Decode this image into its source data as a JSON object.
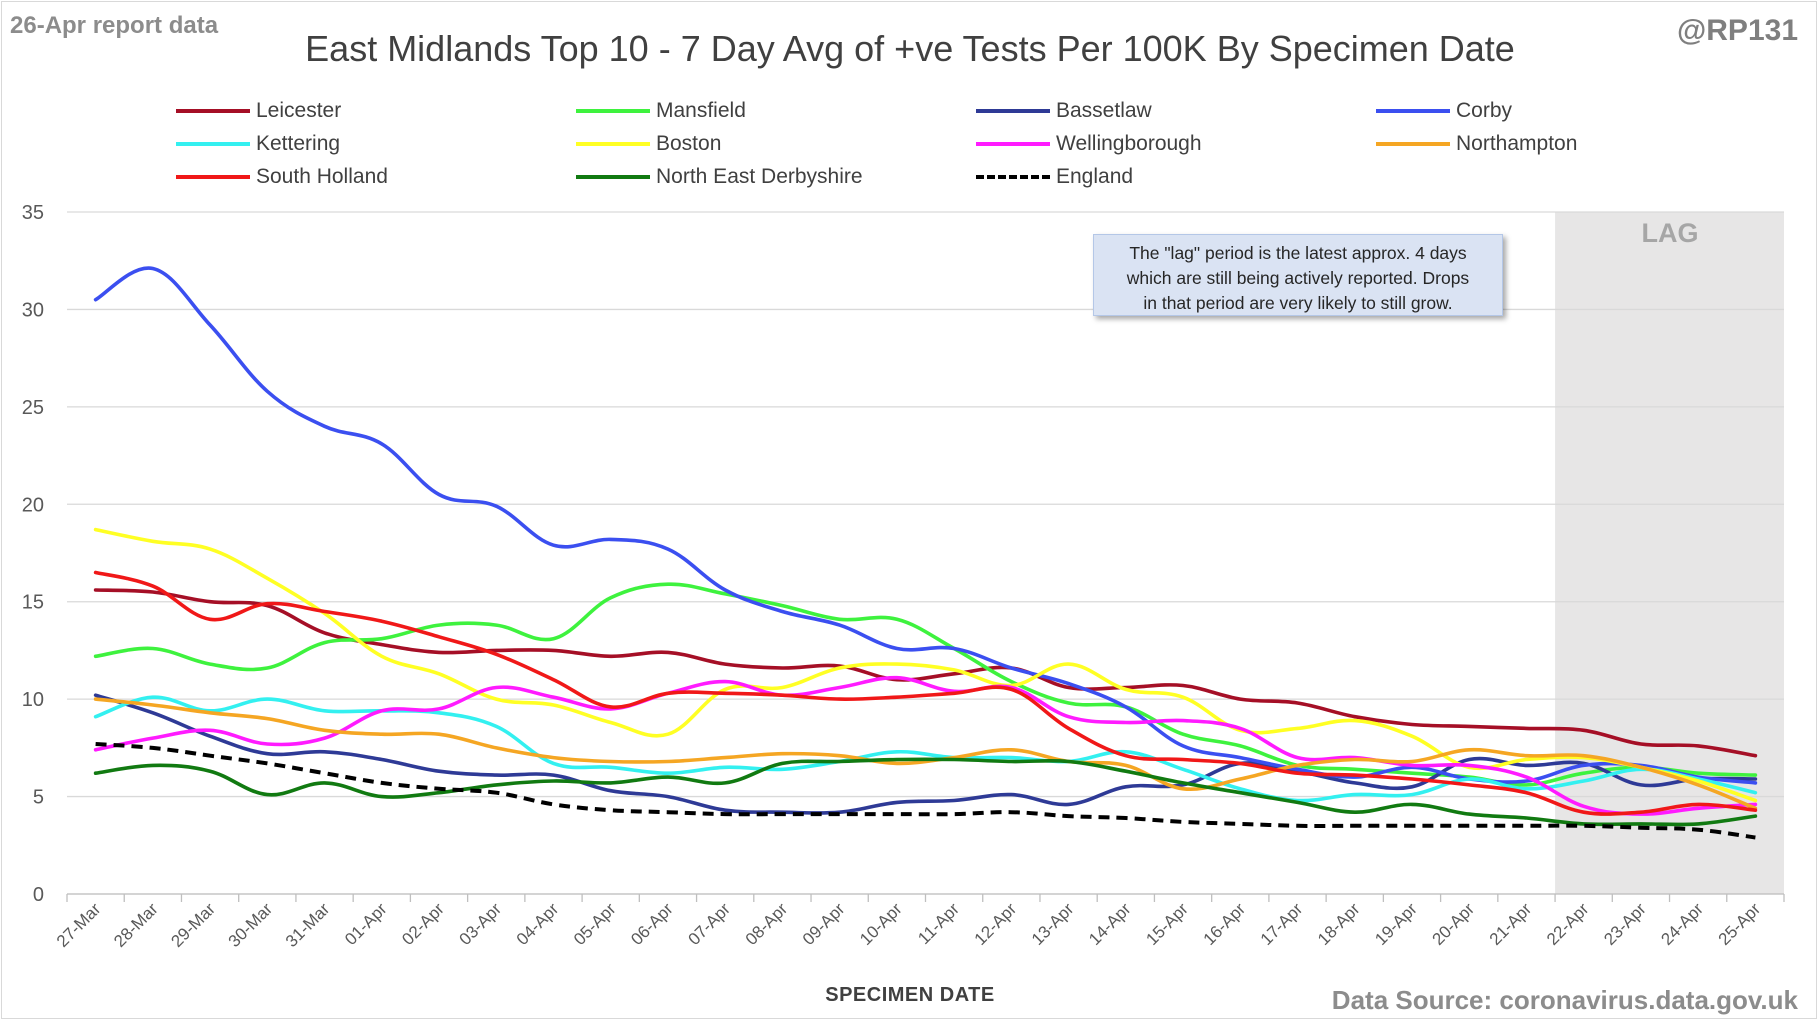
{
  "header": {
    "report_note": "26-Apr report data",
    "handle": "@RP131",
    "title": "East Midlands Top 10 - 7 Day Avg of +ve Tests Per 100K By Specimen Date",
    "source": "Data Source: coronavirus.data.gov.uk"
  },
  "annotation": {
    "lines": [
      "The \"lag\" period is the latest approx. 4 days",
      "which are still being actively reported. Drops",
      "in that period are very likely to still grow."
    ],
    "lag_label": "LAG"
  },
  "chart_data": {
    "type": "line",
    "title": "East Midlands Top 10 - 7 Day Avg of +ve Tests Per 100K By Specimen Date",
    "xlabel": "SPECIMEN DATE",
    "ylabel": "",
    "ylim": [
      0,
      35
    ],
    "yticks": [
      0,
      5,
      10,
      15,
      20,
      25,
      30,
      35
    ],
    "grid": "horizontal",
    "legend_position": "top",
    "lag_period": [
      "22-Apr",
      "25-Apr"
    ],
    "categories": [
      "27-Mar",
      "28-Mar",
      "29-Mar",
      "30-Mar",
      "31-Mar",
      "01-Apr",
      "02-Apr",
      "03-Apr",
      "04-Apr",
      "05-Apr",
      "06-Apr",
      "07-Apr",
      "08-Apr",
      "09-Apr",
      "10-Apr",
      "11-Apr",
      "12-Apr",
      "13-Apr",
      "14-Apr",
      "15-Apr",
      "16-Apr",
      "17-Apr",
      "18-Apr",
      "19-Apr",
      "20-Apr",
      "21-Apr",
      "22-Apr",
      "23-Apr",
      "24-Apr",
      "25-Apr"
    ],
    "series": [
      {
        "name": "Leicester",
        "color": "#a50f26",
        "dash": false,
        "values": [
          15.6,
          15.5,
          15.0,
          14.8,
          13.4,
          12.8,
          12.4,
          12.5,
          12.5,
          12.2,
          12.4,
          11.8,
          11.6,
          11.7,
          11.0,
          11.3,
          11.6,
          10.6,
          10.6,
          10.7,
          10.0,
          9.8,
          9.1,
          8.7,
          8.6,
          8.5,
          8.4,
          7.7,
          7.6,
          7.1
        ]
      },
      {
        "name": "Mansfield",
        "color": "#3ef23e",
        "dash": false,
        "values": [
          12.2,
          12.6,
          11.8,
          11.6,
          12.9,
          13.1,
          13.8,
          13.8,
          13.1,
          15.2,
          15.9,
          15.4,
          14.8,
          14.1,
          14.1,
          12.6,
          10.9,
          9.8,
          9.6,
          8.2,
          7.6,
          6.6,
          6.4,
          6.2,
          6.0,
          5.6,
          6.2,
          6.5,
          6.2,
          6.1
        ]
      },
      {
        "name": "Bassetlaw",
        "color": "#2e3a96",
        "dash": false,
        "values": [
          10.2,
          9.3,
          8.1,
          7.2,
          7.3,
          6.9,
          6.3,
          6.1,
          6.1,
          5.3,
          5.0,
          4.3,
          4.2,
          4.2,
          4.7,
          4.8,
          5.1,
          4.6,
          5.5,
          5.6,
          6.7,
          6.3,
          5.7,
          5.5,
          6.9,
          6.6,
          6.7,
          5.6,
          5.9,
          5.9
        ]
      },
      {
        "name": "Corby",
        "color": "#3b4ff0",
        "dash": false,
        "values": [
          30.5,
          32.1,
          29.2,
          25.8,
          24.0,
          23.1,
          20.5,
          19.9,
          17.9,
          18.2,
          17.7,
          15.6,
          14.5,
          13.8,
          12.6,
          12.6,
          11.6,
          10.8,
          9.6,
          7.6,
          7.0,
          6.4,
          6.0,
          6.5,
          5.9,
          5.8,
          6.6,
          6.6,
          6.0,
          5.7
        ]
      },
      {
        "name": "Kettering",
        "color": "#33f0f0",
        "dash": false,
        "values": [
          9.1,
          10.1,
          9.4,
          10.0,
          9.4,
          9.4,
          9.3,
          8.6,
          6.7,
          6.5,
          6.2,
          6.5,
          6.4,
          6.8,
          7.3,
          7.0,
          7.0,
          6.8,
          7.3,
          6.4,
          5.4,
          4.8,
          5.1,
          5.1,
          5.9,
          5.4,
          5.8,
          6.4,
          5.9,
          5.2
        ]
      },
      {
        "name": "Boston",
        "color": "#ffff24",
        "dash": false,
        "values": [
          18.7,
          18.1,
          17.7,
          16.2,
          14.4,
          12.2,
          11.3,
          10.0,
          9.7,
          8.8,
          8.2,
          10.5,
          10.6,
          11.6,
          11.8,
          11.5,
          10.7,
          11.8,
          10.5,
          10.1,
          8.4,
          8.5,
          8.9,
          8.1,
          6.5,
          6.9,
          7.0,
          6.5,
          5.8,
          4.8
        ]
      },
      {
        "name": "Wellingborough",
        "color": "#ff1bff",
        "dash": false,
        "values": [
          7.4,
          8.0,
          8.4,
          7.7,
          8.0,
          9.4,
          9.5,
          10.6,
          10.1,
          9.5,
          10.3,
          10.9,
          10.2,
          10.6,
          11.1,
          10.4,
          10.6,
          9.1,
          8.8,
          8.9,
          8.5,
          7.0,
          7.0,
          6.6,
          6.6,
          6.0,
          4.5,
          4.1,
          4.4,
          4.6
        ]
      },
      {
        "name": "Northampton",
        "color": "#f5a623",
        "dash": false,
        "values": [
          10.0,
          9.7,
          9.3,
          9.0,
          8.4,
          8.2,
          8.2,
          7.5,
          7.0,
          6.8,
          6.8,
          7.0,
          7.2,
          7.1,
          6.7,
          7.0,
          7.4,
          6.8,
          6.6,
          5.4,
          5.9,
          6.6,
          6.9,
          6.8,
          7.4,
          7.1,
          7.1,
          6.5,
          5.6,
          4.4
        ]
      },
      {
        "name": "South Holland",
        "color": "#f01818",
        "dash": false,
        "values": [
          16.5,
          15.8,
          14.1,
          14.9,
          14.5,
          14.0,
          13.2,
          12.3,
          11.0,
          9.6,
          10.3,
          10.3,
          10.2,
          10.0,
          10.1,
          10.3,
          10.5,
          8.5,
          7.1,
          6.9,
          6.7,
          6.2,
          6.1,
          5.9,
          5.6,
          5.2,
          4.2,
          4.2,
          4.6,
          4.3
        ]
      },
      {
        "name": "North East Derbyshire",
        "color": "#117a11",
        "dash": false,
        "values": [
          6.2,
          6.6,
          6.3,
          5.1,
          5.7,
          5.0,
          5.2,
          5.6,
          5.8,
          5.7,
          6.0,
          5.7,
          6.7,
          6.8,
          6.9,
          6.9,
          6.8,
          6.8,
          6.3,
          5.7,
          5.2,
          4.7,
          4.2,
          4.6,
          4.1,
          3.9,
          3.6,
          3.6,
          3.6,
          4.0
        ]
      },
      {
        "name": "England",
        "color": "#000000",
        "dash": true,
        "values": [
          7.7,
          7.5,
          7.1,
          6.7,
          6.2,
          5.7,
          5.4,
          5.2,
          4.6,
          4.3,
          4.2,
          4.1,
          4.1,
          4.1,
          4.1,
          4.1,
          4.2,
          4.0,
          3.9,
          3.7,
          3.6,
          3.5,
          3.5,
          3.5,
          3.5,
          3.5,
          3.5,
          3.4,
          3.3,
          2.9
        ]
      }
    ]
  }
}
